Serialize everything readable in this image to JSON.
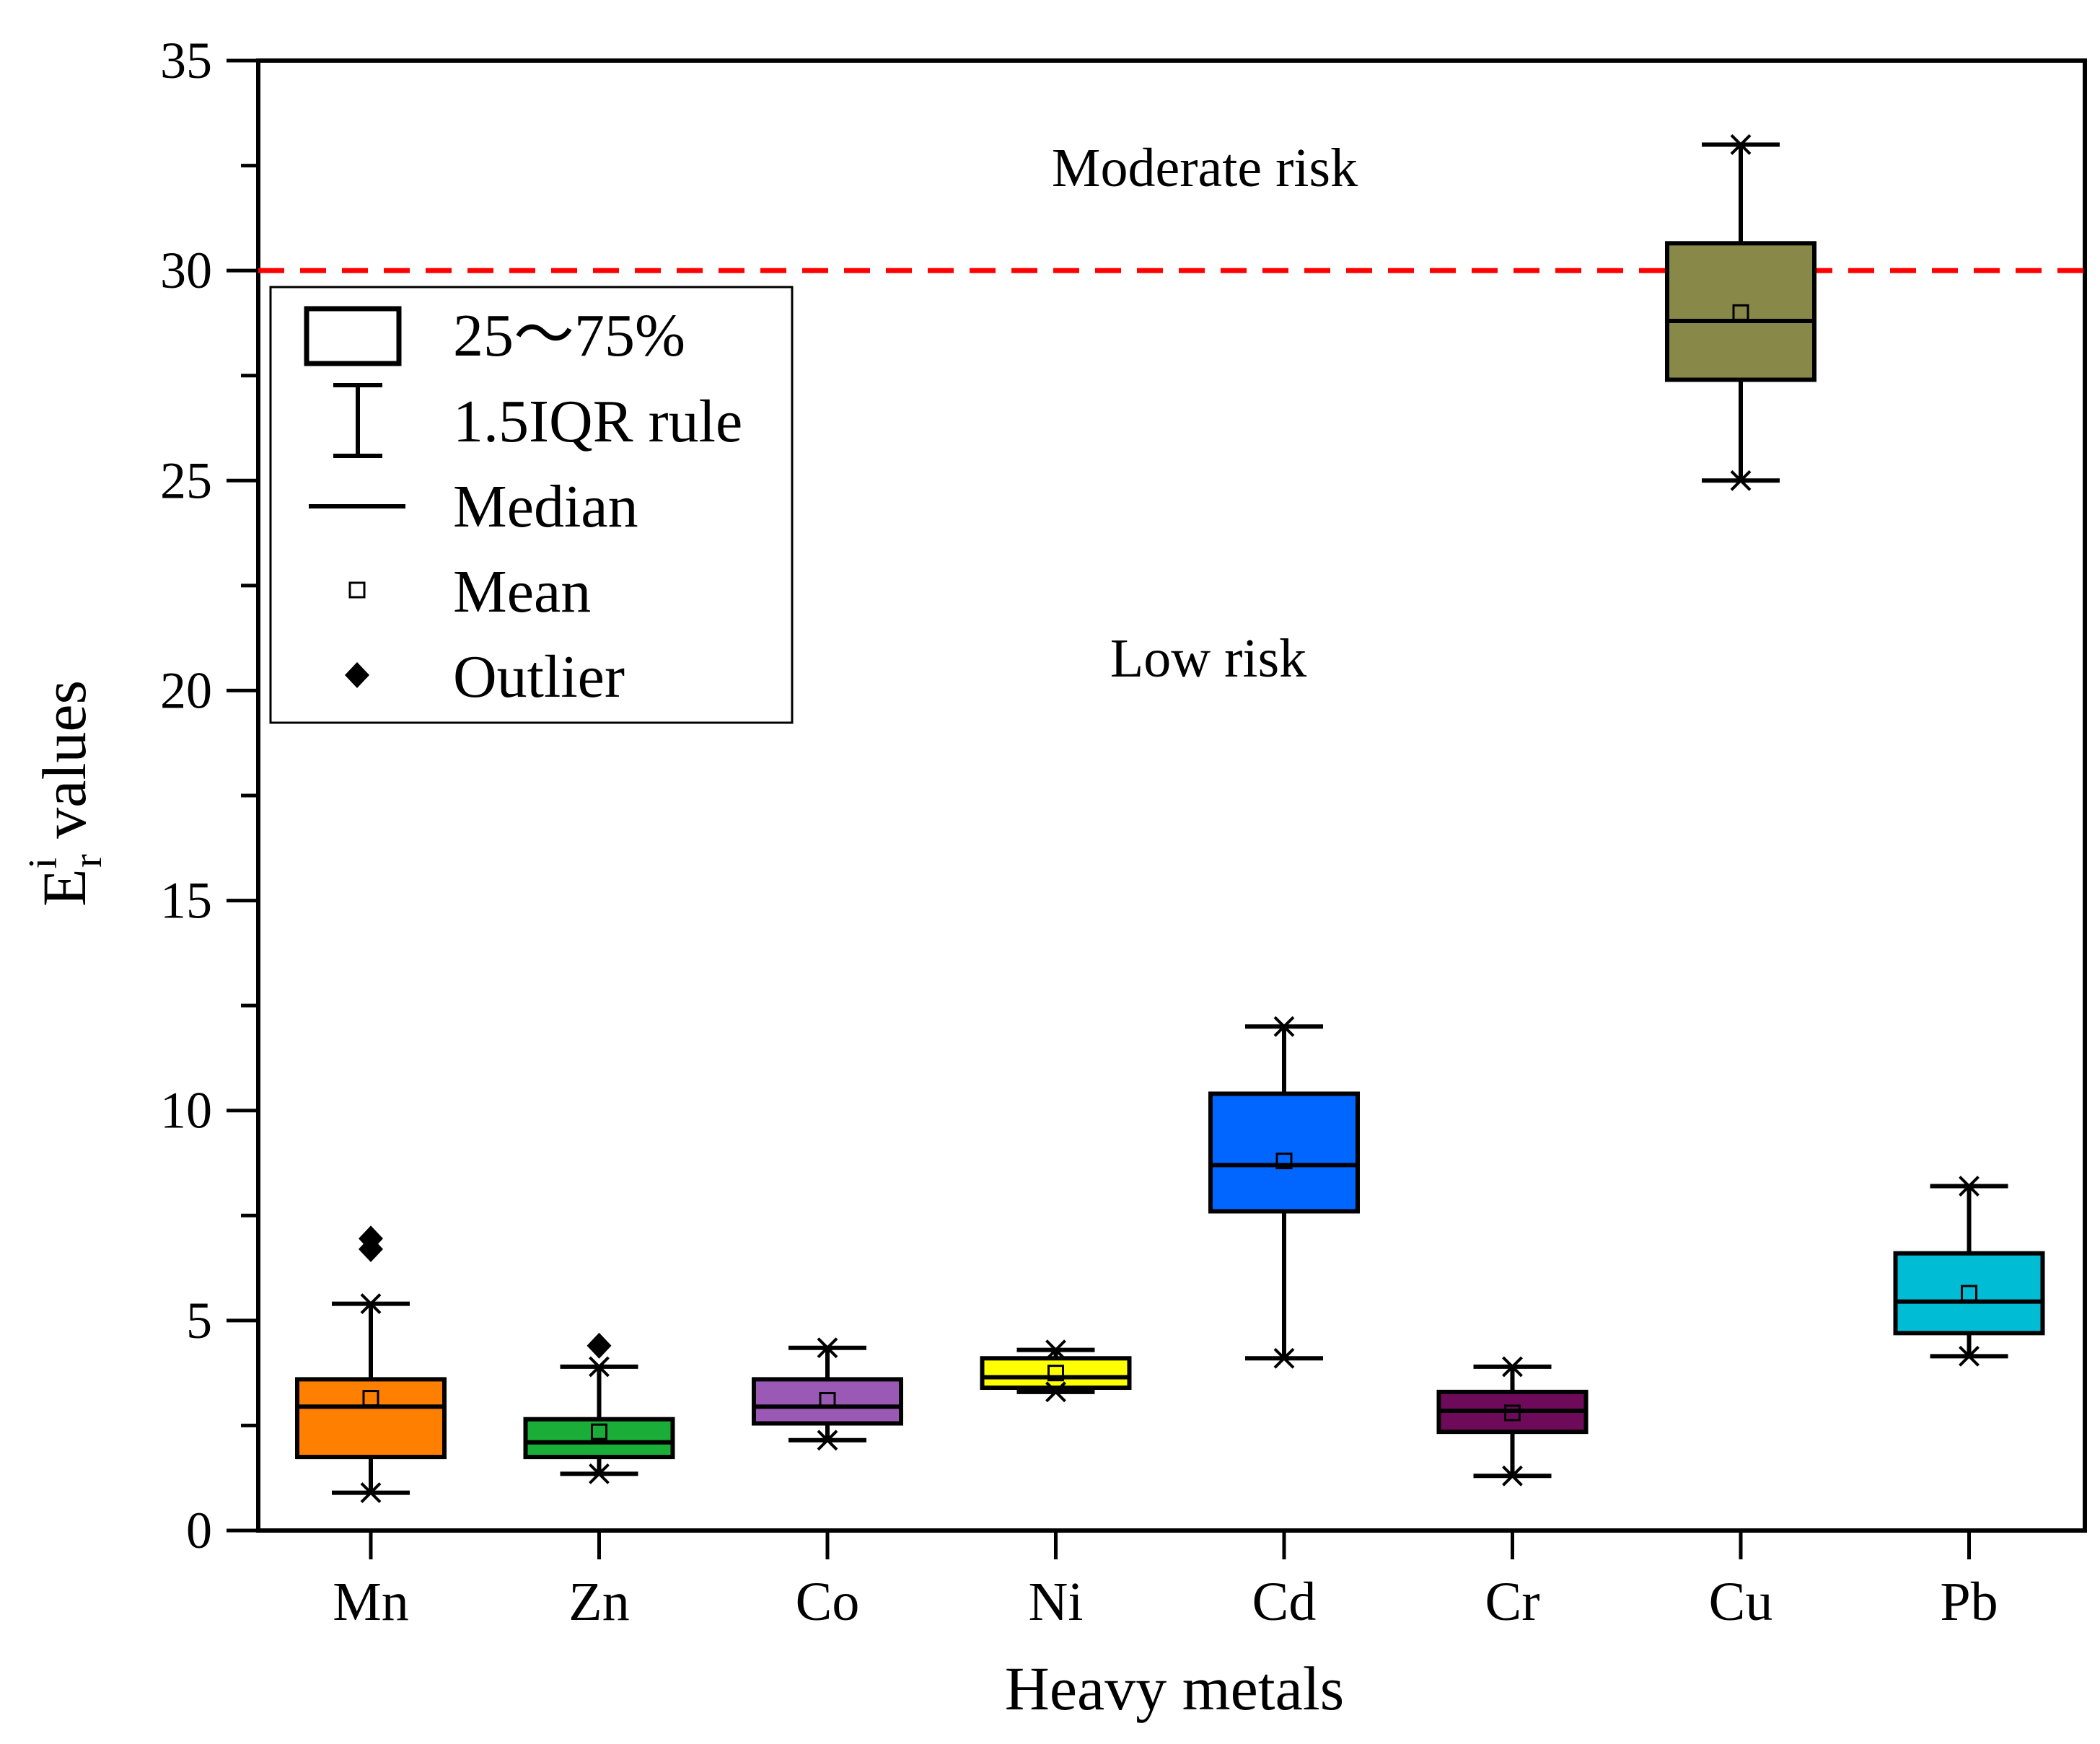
{
  "chart_data": {
    "type": "box",
    "xlabel": "Heavy metals",
    "ylabel": {
      "base": "E",
      "superscript": "i",
      "subscript": "r",
      "suffix": " values"
    },
    "ylim": [
      0,
      35
    ],
    "yticks": [
      "0",
      "5",
      "10",
      "15",
      "20",
      "25",
      "30",
      "35"
    ],
    "categories": [
      "Mn",
      "Zn",
      "Co",
      "Ni",
      "Cd",
      "Cr",
      "Cu",
      "Pb"
    ],
    "threshold": {
      "value": 30,
      "color": "#ff0000",
      "style": "dashed"
    },
    "annotations": {
      "upper": "Moderate risk",
      "lower": "Low risk"
    },
    "series": [
      {
        "name": "Mn",
        "color": "#ff8000",
        "whisker_low": 0.9,
        "q1": 1.75,
        "median": 2.95,
        "q3": 3.6,
        "whisker_high": 5.4,
        "mean": 3.15,
        "outliers": [
          6.7,
          6.95
        ]
      },
      {
        "name": "Zn",
        "color": "#1aad38",
        "whisker_low": 1.35,
        "q1": 1.75,
        "median": 2.1,
        "q3": 2.65,
        "whisker_high": 3.9,
        "mean": 2.35,
        "outliers": [
          4.4
        ]
      },
      {
        "name": "Co",
        "color": "#9b59b6",
        "whisker_low": 2.15,
        "q1": 2.55,
        "median": 2.95,
        "q3": 3.6,
        "whisker_high": 4.35,
        "mean": 3.1,
        "outliers": []
      },
      {
        "name": "Ni",
        "color": "#ffff00",
        "whisker_low": 3.3,
        "q1": 3.4,
        "median": 3.65,
        "q3": 4.1,
        "whisker_high": 4.3,
        "mean": 3.75,
        "outliers": []
      },
      {
        "name": "Cd",
        "color": "#0066ff",
        "whisker_low": 4.1,
        "q1": 7.6,
        "median": 8.7,
        "q3": 10.4,
        "whisker_high": 12.0,
        "mean": 8.8,
        "outliers": []
      },
      {
        "name": "Cr",
        "color": "#6e0a5a",
        "whisker_low": 1.3,
        "q1": 2.35,
        "median": 2.85,
        "q3": 3.3,
        "whisker_high": 3.9,
        "mean": 2.8,
        "outliers": []
      },
      {
        "name": "Cu",
        "color": "#888849",
        "whisker_low": 25.0,
        "q1": 27.4,
        "median": 28.8,
        "q3": 30.65,
        "whisker_high": 33.0,
        "mean": 29.0,
        "outliers": []
      },
      {
        "name": "Pb",
        "color": "#00bcd4",
        "whisker_low": 4.15,
        "q1": 4.7,
        "median": 5.45,
        "q3": 6.6,
        "whisker_high": 8.2,
        "mean": 5.65,
        "outliers": []
      }
    ],
    "legend": {
      "position": "top-left",
      "items": [
        {
          "symbol": "box",
          "label": "25～75%"
        },
        {
          "symbol": "whisker",
          "label": "1.5IQR rule"
        },
        {
          "symbol": "median",
          "label": "Median"
        },
        {
          "symbol": "mean",
          "label": "Mean"
        },
        {
          "symbol": "outlier",
          "label": "Outlier"
        }
      ]
    }
  }
}
